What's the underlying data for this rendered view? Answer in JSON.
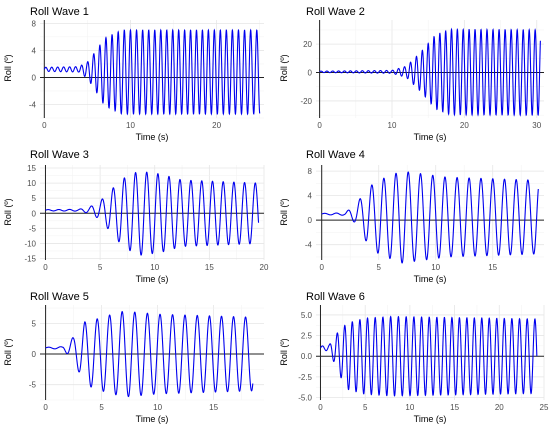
{
  "chart_data": [
    {
      "type": "line",
      "title": "Roll Wave 1",
      "xlabel": "Time (s)",
      "ylabel": "Roll (º)",
      "xlim": [
        -0.5,
        25.5
      ],
      "ylim": [
        -6,
        8.5
      ],
      "xticks": [
        0,
        10,
        20
      ],
      "yticks": [
        -4,
        0,
        4,
        8
      ],
      "grid": true,
      "series": [
        {
          "color": "#0000ee",
          "x_start": 0,
          "x_end": 25,
          "envelope": [
            [
              0,
              0.3
            ],
            [
              4,
              0.4
            ],
            [
              5,
              1.2
            ],
            [
              6,
              3
            ],
            [
              7,
              5
            ],
            [
              9,
              6.2
            ],
            [
              25,
              6.2
            ]
          ],
          "offset": [
            [
              0,
              1.2
            ],
            [
              4,
              1.2
            ],
            [
              7,
              0.8
            ],
            [
              25,
              0.8
            ]
          ],
          "period": 0.7
        }
      ]
    },
    {
      "type": "line",
      "title": "Roll Wave 2",
      "xlabel": "Time (s)",
      "ylabel": "Roll (º)",
      "xlim": [
        -0.5,
        31
      ],
      "ylim": [
        -32,
        37
      ],
      "xticks": [
        0,
        10,
        20,
        30
      ],
      "yticks": [
        -20,
        0,
        20
      ],
      "grid": true,
      "series": [
        {
          "color": "#0000ee",
          "x_start": 0,
          "x_end": 30.5,
          "envelope": [
            [
              0,
              0.5
            ],
            [
              10,
              1
            ],
            [
              12,
              4
            ],
            [
              14,
              14
            ],
            [
              16,
              26
            ],
            [
              18,
              30
            ],
            [
              30.5,
              30
            ]
          ],
          "offset": [
            [
              0,
              0.5
            ],
            [
              14,
              0.5
            ],
            [
              30.5,
              0
            ]
          ],
          "period": 0.82
        }
      ]
    },
    {
      "type": "line",
      "title": "Roll Wave 3",
      "xlabel": "Time (s)",
      "ylabel": "Roll (º)",
      "xlim": [
        -0.5,
        20
      ],
      "ylim": [
        -15.5,
        16
      ],
      "xticks": [
        0,
        5,
        10,
        15,
        20
      ],
      "yticks": [
        -15,
        -10,
        -5,
        0,
        5,
        10,
        15
      ],
      "grid": true,
      "series": [
        {
          "color": "#0000ee",
          "x_start": 0,
          "x_end": 19.5,
          "envelope": [
            [
              0,
              0.2
            ],
            [
              3,
              0.3
            ],
            [
              4,
              1
            ],
            [
              5,
              3
            ],
            [
              6,
              7
            ],
            [
              7,
              11
            ],
            [
              8.5,
              14
            ],
            [
              10.5,
              13
            ],
            [
              12.5,
              11
            ],
            [
              19.5,
              10
            ]
          ],
          "offset": [
            [
              0,
              1
            ],
            [
              5,
              1
            ],
            [
              8,
              0
            ],
            [
              19.5,
              0
            ]
          ],
          "period": 1.0
        }
      ]
    },
    {
      "type": "line",
      "title": "Roll Wave 4",
      "xlabel": "Time (s)",
      "ylabel": "Roll (º)",
      "xlim": [
        -0.5,
        19.5
      ],
      "ylim": [
        -6.5,
        9
      ],
      "xticks": [
        0,
        5,
        10,
        15
      ],
      "yticks": [
        -4,
        0,
        4,
        8
      ],
      "grid": true,
      "series": [
        {
          "color": "#0000ee",
          "x_start": 0,
          "x_end": 19,
          "envelope": [
            [
              0,
              0.1
            ],
            [
              2,
              0.2
            ],
            [
              3,
              1.5
            ],
            [
              4,
              4.5
            ],
            [
              5,
              6
            ],
            [
              7,
              7.5
            ],
            [
              9,
              7
            ],
            [
              11,
              6.5
            ],
            [
              19,
              6
            ]
          ],
          "offset": [
            [
              0,
              1
            ],
            [
              3,
              1
            ],
            [
              5,
              0.5
            ],
            [
              19,
              0.5
            ]
          ],
          "period": 1.05
        }
      ]
    },
    {
      "type": "line",
      "title": "Roll Wave 5",
      "xlabel": "Time (s)",
      "ylabel": "Roll (º)",
      "xlim": [
        -0.5,
        19.5
      ],
      "ylim": [
        -7.5,
        8
      ],
      "xticks": [
        0,
        5,
        10,
        15
      ],
      "yticks": [
        -5,
        0,
        5
      ],
      "grid": true,
      "series": [
        {
          "color": "#0000ee",
          "x_start": 0,
          "x_end": 18.5,
          "envelope": [
            [
              0,
              0.1
            ],
            [
              1.5,
              0.2
            ],
            [
              2.5,
              2
            ],
            [
              3.5,
              5
            ],
            [
              5,
              6
            ],
            [
              7,
              7
            ],
            [
              10,
              6.5
            ],
            [
              18.5,
              6
            ]
          ],
          "offset": [
            [
              0,
              1
            ],
            [
              2,
              1
            ],
            [
              4,
              0
            ],
            [
              18.5,
              0
            ]
          ],
          "period": 1.1
        }
      ]
    },
    {
      "type": "line",
      "title": "Roll Wave 6",
      "xlabel": "Time (s)",
      "ylabel": "Roll (º)",
      "xlim": [
        -0.5,
        25
      ],
      "ylim": [
        -5.3,
        6.2
      ],
      "xticks": [
        0,
        5,
        10,
        15,
        20,
        25
      ],
      "yticks": [
        -5.0,
        -2.5,
        0.0,
        2.5,
        5.0
      ],
      "grid": true,
      "series": [
        {
          "color": "#0000ee",
          "x_start": 0,
          "x_end": 24.2,
          "envelope": [
            [
              0,
              0.2
            ],
            [
              1,
              0.4
            ],
            [
              2,
              2.5
            ],
            [
              3,
              4
            ],
            [
              5,
              4.6
            ],
            [
              8,
              4.8
            ],
            [
              24.2,
              4.5
            ]
          ],
          "offset": [
            [
              0,
              1
            ],
            [
              1,
              1
            ],
            [
              3,
              0
            ],
            [
              24.2,
              0
            ]
          ],
          "period": 0.85
        }
      ]
    }
  ]
}
